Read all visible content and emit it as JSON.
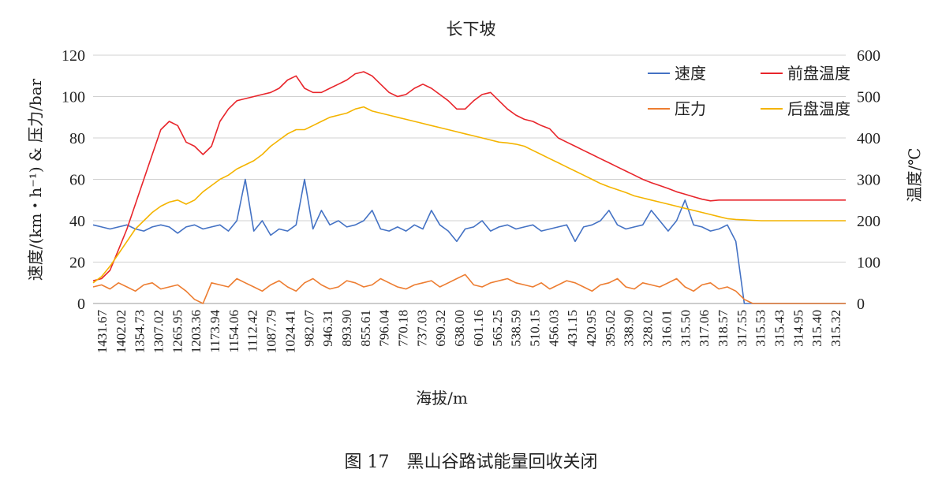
{
  "caption": "图 17　黑山谷路试能量回收关闭",
  "chart_data": {
    "type": "line",
    "title": "长下坡",
    "xlabel": "海拔/m",
    "ylabel_left": "速度/(km・h⁻¹) & 压力/bar",
    "ylabel_right": "温度/℃",
    "ylim_left": [
      0,
      120
    ],
    "ylim_right": [
      0,
      600
    ],
    "yticks_left": [
      "0",
      "20",
      "40",
      "60",
      "80",
      "100",
      "120"
    ],
    "yticks_right": [
      "0",
      "100",
      "200",
      "300",
      "400",
      "500",
      "600"
    ],
    "x_tick_labels": [
      "1431.67",
      "1402.02",
      "1354.73",
      "1307.02",
      "1265.95",
      "1203.36",
      "1173.94",
      "1154.06",
      "1112.42",
      "1087.79",
      "1024.41",
      "982.07",
      "946.31",
      "893.90",
      "855.61",
      "796.04",
      "770.18",
      "737.03",
      "690.32",
      "638.00",
      "601.16",
      "565.25",
      "538.59",
      "510.15",
      "456.03",
      "431.15",
      "420.95",
      "395.02",
      "338.90",
      "328.02",
      "316.01",
      "315.50",
      "317.06",
      "318.57",
      "317.55",
      "315.53",
      "315.43",
      "314.95",
      "315.40",
      "315.32"
    ],
    "grid": true,
    "legend_position": "top-right",
    "series": [
      {
        "name": "速度",
        "axis": "left",
        "color": "#4472c4",
        "values": [
          38,
          37,
          36,
          37,
          38,
          36,
          35,
          37,
          38,
          37,
          34,
          37,
          38,
          36,
          37,
          38,
          35,
          40,
          60,
          35,
          40,
          33,
          36,
          35,
          38,
          60,
          36,
          45,
          38,
          40,
          37,
          38,
          40,
          45,
          36,
          35,
          37,
          35,
          38,
          36,
          45,
          38,
          35,
          30,
          36,
          37,
          40,
          35,
          37,
          38,
          36,
          37,
          38,
          35,
          36,
          37,
          38,
          30,
          37,
          38,
          40,
          45,
          38,
          36,
          37,
          38,
          45,
          40,
          35,
          40,
          50,
          38,
          37,
          35,
          36,
          38,
          30,
          0,
          0,
          0,
          0,
          0,
          0,
          0,
          0,
          0,
          0,
          0,
          0,
          0
        ]
      },
      {
        "name": "压力",
        "axis": "left",
        "color": "#ed7d31",
        "values": [
          8,
          9,
          7,
          10,
          8,
          6,
          9,
          10,
          7,
          8,
          9,
          6,
          2,
          0,
          10,
          9,
          8,
          12,
          10,
          8,
          6,
          9,
          11,
          8,
          6,
          10,
          12,
          9,
          7,
          8,
          11,
          10,
          8,
          9,
          12,
          10,
          8,
          7,
          9,
          10,
          11,
          8,
          10,
          12,
          14,
          9,
          8,
          10,
          11,
          12,
          10,
          9,
          8,
          10,
          7,
          9,
          11,
          10,
          8,
          6,
          9,
          10,
          12,
          8,
          7,
          10,
          9,
          8,
          10,
          12,
          8,
          6,
          9,
          10,
          7,
          8,
          6,
          2,
          0,
          0,
          0,
          0,
          0,
          0,
          0,
          0,
          0,
          0,
          0,
          0
        ]
      },
      {
        "name": "前盘温度",
        "axis": "right",
        "color": "#e8252b",
        "values": [
          55,
          60,
          80,
          130,
          180,
          240,
          300,
          360,
          420,
          440,
          430,
          390,
          380,
          360,
          380,
          440,
          470,
          490,
          495,
          500,
          505,
          510,
          520,
          540,
          550,
          520,
          510,
          510,
          520,
          530,
          540,
          555,
          560,
          550,
          530,
          510,
          500,
          505,
          520,
          530,
          520,
          505,
          490,
          470,
          470,
          490,
          505,
          510,
          490,
          470,
          455,
          445,
          440,
          430,
          422,
          400,
          390,
          380,
          370,
          360,
          350,
          340,
          330,
          320,
          310,
          300,
          292,
          285,
          278,
          270,
          264,
          258,
          252,
          248,
          250,
          250,
          250,
          250,
          250,
          250,
          250,
          250,
          250,
          250,
          250,
          250,
          250,
          250,
          250,
          250
        ]
      },
      {
        "name": "后盘温度",
        "axis": "right",
        "color": "#f4b400",
        "values": [
          50,
          65,
          90,
          120,
          150,
          180,
          200,
          220,
          235,
          245,
          250,
          240,
          250,
          270,
          285,
          300,
          310,
          325,
          335,
          345,
          360,
          380,
          395,
          410,
          420,
          420,
          430,
          440,
          450,
          455,
          460,
          470,
          475,
          465,
          460,
          455,
          450,
          445,
          440,
          435,
          430,
          425,
          420,
          415,
          410,
          405,
          400,
          395,
          390,
          388,
          385,
          380,
          370,
          360,
          350,
          340,
          330,
          320,
          310,
          300,
          290,
          282,
          275,
          268,
          260,
          255,
          250,
          245,
          240,
          235,
          230,
          225,
          220,
          215,
          210,
          205,
          203,
          202,
          201,
          200,
          200,
          200,
          200,
          200,
          200,
          200,
          200,
          200,
          200,
          200
        ]
      }
    ]
  }
}
